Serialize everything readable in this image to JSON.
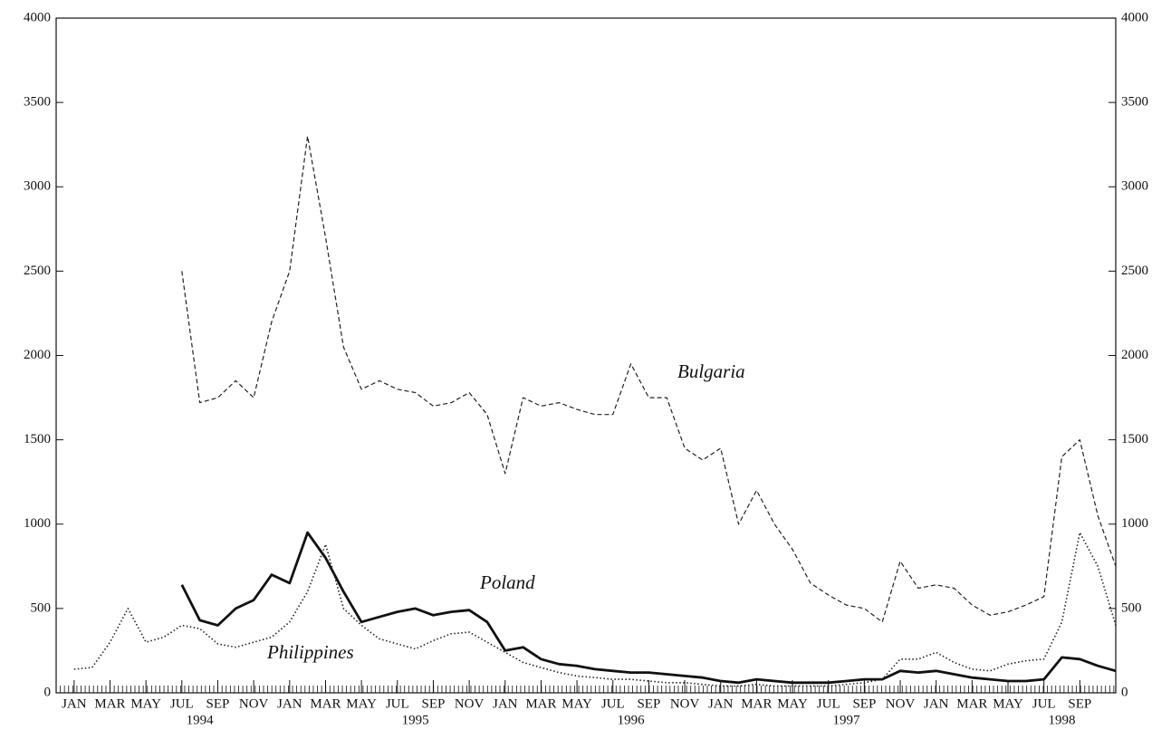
{
  "chart_data": {
    "type": "line",
    "x": [
      "1994-01",
      "1994-02",
      "1994-03",
      "1994-04",
      "1994-05",
      "1994-06",
      "1994-07",
      "1994-08",
      "1994-09",
      "1994-10",
      "1994-11",
      "1994-12",
      "1995-01",
      "1995-02",
      "1995-03",
      "1995-04",
      "1995-05",
      "1995-06",
      "1995-07",
      "1995-08",
      "1995-09",
      "1995-10",
      "1995-11",
      "1995-12",
      "1996-01",
      "1996-02",
      "1996-03",
      "1996-04",
      "1996-05",
      "1996-06",
      "1996-07",
      "1996-08",
      "1996-09",
      "1996-10",
      "1996-11",
      "1996-12",
      "1997-01",
      "1997-02",
      "1997-03",
      "1997-04",
      "1997-05",
      "1997-06",
      "1997-07",
      "1997-08",
      "1997-09",
      "1997-10",
      "1997-11",
      "1997-12",
      "1998-01",
      "1998-02",
      "1998-03",
      "1998-04",
      "1998-05",
      "1998-06",
      "1998-07",
      "1998-08",
      "1998-09",
      "1998-10",
      "1998-11"
    ],
    "series": [
      {
        "name": "Bulgaria",
        "color": "#222",
        "style": "dashed",
        "values": [
          null,
          null,
          null,
          null,
          null,
          null,
          2500,
          1720,
          1750,
          1850,
          1750,
          2200,
          2500,
          3300,
          2700,
          2050,
          1800,
          1850,
          1800,
          1780,
          1700,
          1720,
          1780,
          1650,
          1300,
          1750,
          1700,
          1720,
          1680,
          1650,
          1650,
          1950,
          1750,
          1750,
          1450,
          1380,
          1450,
          1000,
          1200,
          1000,
          850,
          650,
          580,
          520,
          500,
          420,
          780,
          620,
          640,
          620,
          520,
          460,
          480,
          520,
          570,
          1400,
          1500,
          1050,
          750
        ]
      },
      {
        "name": "Poland",
        "color": "#111",
        "style": "solid",
        "values": [
          null,
          null,
          null,
          null,
          null,
          null,
          640,
          430,
          400,
          500,
          550,
          700,
          650,
          950,
          800,
          600,
          420,
          450,
          480,
          500,
          460,
          480,
          490,
          420,
          250,
          270,
          200,
          170,
          160,
          140,
          130,
          120,
          120,
          110,
          100,
          90,
          70,
          60,
          80,
          70,
          60,
          60,
          60,
          70,
          80,
          80,
          130,
          120,
          130,
          110,
          90,
          80,
          70,
          70,
          80,
          210,
          200,
          160,
          130
        ]
      },
      {
        "name": "Philippines",
        "color": "#222",
        "style": "dotted",
        "values": [
          140,
          150,
          300,
          500,
          300,
          330,
          400,
          380,
          290,
          270,
          300,
          330,
          420,
          600,
          880,
          500,
          400,
          320,
          290,
          260,
          310,
          350,
          360,
          300,
          240,
          180,
          150,
          120,
          100,
          90,
          80,
          80,
          70,
          60,
          60,
          50,
          40,
          40,
          50,
          40,
          40,
          40,
          40,
          50,
          60,
          80,
          200,
          200,
          240,
          180,
          140,
          130,
          170,
          190,
          200,
          420,
          950,
          750,
          400
        ]
      }
    ],
    "xlim": [
      "1993-12",
      "1998-11"
    ],
    "xticks": [
      {
        "value": "1994-01",
        "label": "JAN"
      },
      {
        "value": "1994-03",
        "label": "MAR"
      },
      {
        "value": "1994-05",
        "label": "MAY"
      },
      {
        "value": "1994-07",
        "label": "JUL"
      },
      {
        "value": "1994-09",
        "label": "SEP"
      },
      {
        "value": "1994-11",
        "label": "NOV"
      },
      {
        "value": "1995-01",
        "label": "JAN"
      },
      {
        "value": "1995-03",
        "label": "MAR"
      },
      {
        "value": "1995-05",
        "label": "MAY"
      },
      {
        "value": "1995-07",
        "label": "JUL"
      },
      {
        "value": "1995-09",
        "label": "SEP"
      },
      {
        "value": "1995-11",
        "label": "NOV"
      },
      {
        "value": "1996-01",
        "label": "JAN"
      },
      {
        "value": "1996-03",
        "label": "MAR"
      },
      {
        "value": "1996-05",
        "label": "MAY"
      },
      {
        "value": "1996-07",
        "label": "JUL"
      },
      {
        "value": "1996-09",
        "label": "SEP"
      },
      {
        "value": "1996-11",
        "label": "NOV"
      },
      {
        "value": "1997-01",
        "label": "JAN"
      },
      {
        "value": "1997-03",
        "label": "MAR"
      },
      {
        "value": "1997-05",
        "label": "MAY"
      },
      {
        "value": "1997-07",
        "label": "JUL"
      },
      {
        "value": "1997-09",
        "label": "SEP"
      },
      {
        "value": "1997-11",
        "label": "NOV"
      },
      {
        "value": "1998-01",
        "label": "JAN"
      },
      {
        "value": "1998-03",
        "label": "MAR"
      },
      {
        "value": "1998-05",
        "label": "MAY"
      },
      {
        "value": "1998-07",
        "label": "JUL"
      },
      {
        "value": "1998-09",
        "label": "SEP"
      }
    ],
    "years": [
      "1994",
      "1995",
      "1996",
      "1997",
      "1998"
    ],
    "ylim": [
      0,
      4000
    ],
    "yticks": [
      0,
      500,
      1000,
      1500,
      2000,
      2500,
      3000,
      3500,
      4000
    ]
  }
}
